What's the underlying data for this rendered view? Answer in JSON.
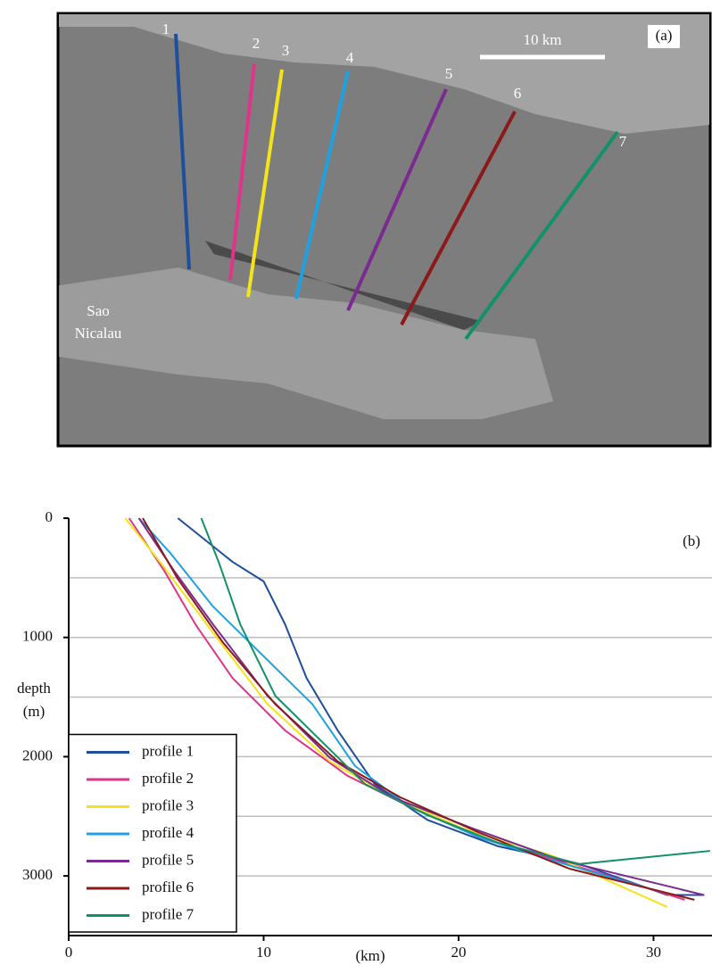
{
  "map": {
    "panel_label": "(a)",
    "scale_bar": "10 km",
    "place": [
      "Sao",
      "Nicalau"
    ],
    "profile_labels": [
      "1",
      "2",
      "3",
      "4",
      "5",
      "6",
      "7"
    ]
  },
  "chart_data": {
    "type": "line",
    "panel_label": "(b)",
    "xlabel": "(km)",
    "ylabel": [
      "depth",
      "(m)"
    ],
    "xlim": [
      0,
      33
    ],
    "xticks": [
      0,
      10,
      20,
      30
    ],
    "ylim": [
      0,
      3500
    ],
    "yticks": [
      0,
      1000,
      2000,
      3000
    ],
    "y_inverted": true,
    "grid_lines": [
      500,
      1000,
      1500,
      2000,
      2500,
      3000
    ],
    "legend": "lower left",
    "series": [
      {
        "name": "profile 1",
        "color": "#1f4e9c",
        "x": [
          5.6,
          8.4,
          10.0,
          11.1,
          12.2,
          13.8,
          15.7,
          18.4,
          22.0,
          26.2,
          30.7,
          32.6
        ],
        "values": [
          0,
          366,
          530,
          890,
          1340,
          1780,
          2230,
          2530,
          2750,
          2900,
          3160,
          3160
        ]
      },
      {
        "name": "profile 2",
        "color": "#e0338a",
        "x": [
          3.1,
          4.9,
          6.5,
          8.4,
          11.1,
          14.3,
          17.5,
          21.1,
          25.7,
          31.6
        ],
        "values": [
          0,
          440,
          890,
          1340,
          1780,
          2160,
          2420,
          2680,
          2900,
          3200
        ]
      },
      {
        "name": "profile 3",
        "color": "#f5e31a",
        "x": [
          2.9,
          4.7,
          7.4,
          10.2,
          13.4,
          16.6,
          20.2,
          24.8,
          30.7
        ],
        "values": [
          0,
          370,
          960,
          1560,
          2040,
          2340,
          2600,
          2830,
          3260
        ]
      },
      {
        "name": "profile 4",
        "color": "#1fa0e0",
        "x": [
          3.6,
          5.2,
          7.4,
          10.2,
          12.5,
          14.7,
          17.5,
          21.1,
          24.8,
          30.3
        ],
        "values": [
          0,
          290,
          740,
          1190,
          1560,
          2080,
          2420,
          2680,
          2870,
          3130
        ]
      },
      {
        "name": "profile 5",
        "color": "#7a2a90",
        "x": [
          3.6,
          5.4,
          7.4,
          10.2,
          13.4,
          16.6,
          20.7,
          25.3,
          32.6
        ],
        "values": [
          0,
          440,
          890,
          1490,
          2010,
          2340,
          2600,
          2870,
          3160
        ]
      },
      {
        "name": "profile 6",
        "color": "#8b1a1a",
        "x": [
          3.8,
          5.6,
          7.9,
          10.6,
          13.8,
          17.0,
          21.1,
          25.7,
          32.1
        ],
        "values": [
          0,
          510,
          1040,
          1560,
          2040,
          2340,
          2640,
          2940,
          3200
        ]
      },
      {
        "name": "profile 7",
        "color": "#12906a",
        "x": [
          6.8,
          7.7,
          8.8,
          10.6,
          12.9,
          15.2,
          18.4,
          22.0,
          26.2,
          32.9
        ],
        "values": [
          0,
          370,
          890,
          1490,
          1860,
          2230,
          2490,
          2720,
          2900,
          2790
        ]
      }
    ]
  }
}
